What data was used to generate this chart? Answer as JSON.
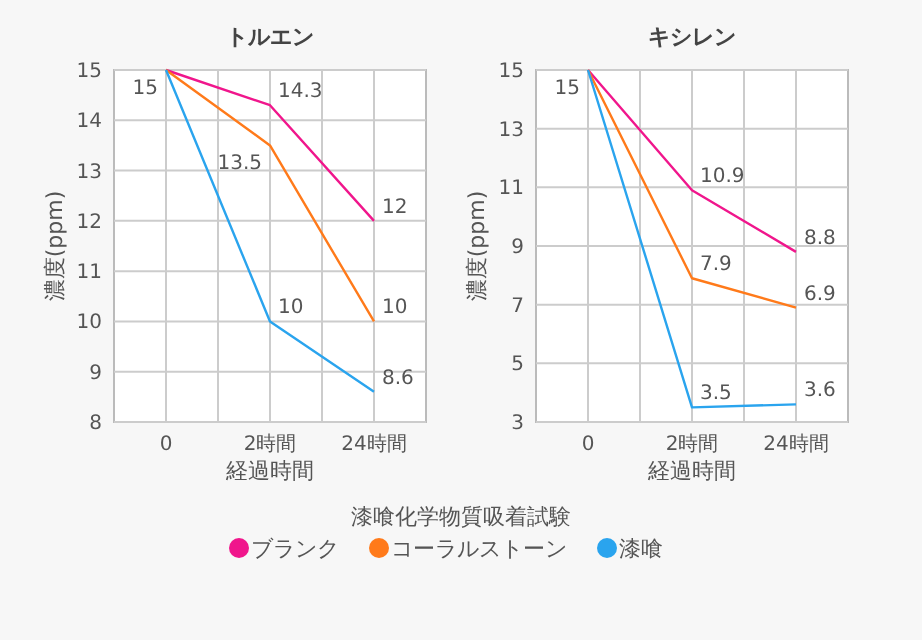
{
  "chart_data": [
    {
      "type": "line",
      "title": "トルエン",
      "xlabel": "経過時間",
      "ylabel": "濃度(ppm)",
      "categories": [
        "0",
        "2時間",
        "24時間"
      ],
      "ylim": [
        8,
        15
      ],
      "yticks": [
        8,
        9,
        10,
        11,
        12,
        13,
        14,
        15
      ],
      "grid": true,
      "marker": "none",
      "series": [
        {
          "color": "#f0168c",
          "values": [
            15,
            14.3,
            12
          ],
          "value_labels": [
            "15",
            "14.3",
            "12"
          ]
        },
        {
          "color": "#ff7a1a",
          "values": [
            15,
            13.5,
            10
          ],
          "value_labels": [
            null,
            "13.5",
            "10"
          ]
        },
        {
          "color": "#2aa4ee",
          "values": [
            15,
            10,
            8.6
          ],
          "value_labels": [
            null,
            "10",
            "8.6"
          ]
        }
      ]
    },
    {
      "type": "line",
      "title": "キシレン",
      "xlabel": "経過時間",
      "ylabel": "濃度(ppm)",
      "categories": [
        "0",
        "2時間",
        "24時間"
      ],
      "ylim": [
        3,
        15
      ],
      "yticks": [
        3,
        5,
        7,
        9,
        11,
        13,
        15
      ],
      "grid": true,
      "marker": "none",
      "legend": "bottom",
      "annotations": [
        "漆喰化学物質吸着試験"
      ],
      "series": [
        {
          "name": "ブランク",
          "color": "#f0168c",
          "values": [
            15,
            10.9,
            8.8
          ],
          "value_labels": [
            "15",
            "10.9",
            "8.8"
          ]
        },
        {
          "name": "コーラルストーン",
          "color": "#ff7a1a",
          "values": [
            15,
            7.9,
            6.9
          ],
          "value_labels": [
            null,
            "7.9",
            "6.9"
          ]
        },
        {
          "name": "漆喰",
          "color": "#2aa4ee",
          "values": [
            15,
            3.5,
            3.6
          ],
          "value_labels": [
            null,
            "3.5",
            "3.6"
          ]
        }
      ]
    }
  ]
}
